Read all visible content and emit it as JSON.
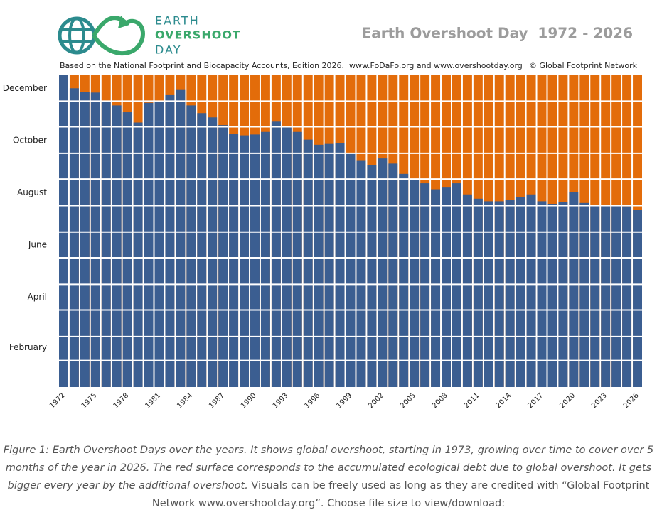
{
  "chart_data": {
    "type": "bar",
    "logo": [
      "EARTH",
      "OVERSHOOT",
      "DAY"
    ],
    "title": "Earth Overshoot Day  1972 - 2026",
    "subtitle": "Based on the National Footprint and Biocapacity Accounts, Edition 2026.  www.FoDaFo.org and www.overshootday.org",
    "credit": "© Global Footprint Network",
    "categories": [
      "1972",
      null,
      null,
      "1975",
      null,
      null,
      "1978",
      null,
      null,
      "1981",
      null,
      null,
      "1984",
      null,
      null,
      "1987",
      null,
      null,
      "1990",
      null,
      null,
      "1993",
      null,
      null,
      "1996",
      null,
      null,
      "1999",
      null,
      null,
      "2002",
      null,
      null,
      "2005",
      null,
      null,
      "2008",
      null,
      null,
      "2011",
      null,
      null,
      "2014",
      null,
      null,
      "2017",
      null,
      null,
      "2020",
      null,
      null,
      "2023",
      null,
      null,
      "2026"
    ],
    "values": [
      365,
      349,
      345,
      344,
      334,
      329,
      321,
      309,
      332,
      334,
      341,
      347,
      329,
      320,
      315,
      306,
      296,
      294,
      295,
      298,
      310,
      304,
      298,
      289,
      283,
      284,
      285,
      273,
      265,
      259,
      267,
      261,
      249,
      243,
      238,
      231,
      233,
      238,
      225,
      220,
      217,
      217,
      219,
      222,
      225,
      217,
      214,
      216,
      228,
      215,
      212,
      212,
      212,
      211,
      207
    ],
    "color": "#3b5e91",
    "overshoot_color": "#e36c0a",
    "ylim": [
      0,
      365
    ],
    "yticks": [
      {
        "value": 46,
        "label": "February"
      },
      {
        "value": 105,
        "label": "April"
      },
      {
        "value": 166,
        "label": "June"
      },
      {
        "value": 227,
        "label": "August"
      },
      {
        "value": 288,
        "label": "October"
      },
      {
        "value": 349,
        "label": "December"
      }
    ],
    "month_lines": [
      31,
      59,
      90,
      120,
      151,
      181,
      212,
      243,
      273,
      304,
      334
    ]
  },
  "caption": {
    "italic": "Figure 1: Earth Overshoot Days over the years. It shows global overshoot, starting in 1973, growing over time to cover over 5 months of the year in 2026. The red surface corresponds to the accumulated ecological debt due to global overshoot. It gets bigger every year by the additional overshoot.",
    "plain": " Visuals can be freely used as long as they are credited with “Global Footprint Network www.overshootday.org”. Choose file size to view/download:"
  }
}
